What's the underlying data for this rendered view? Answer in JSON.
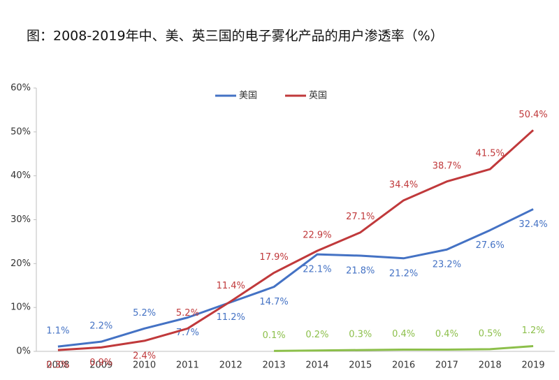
{
  "chart_data": {
    "type": "line",
    "title": "图：2008-2019年中、美、英三国的电子雾化产品的用户渗透率（%）",
    "categories": [
      "2008",
      "2009",
      "2010",
      "2011",
      "2012",
      "2013",
      "2014",
      "2015",
      "2016",
      "2017",
      "2018",
      "2019"
    ],
    "series": [
      {
        "name": "美国",
        "color": "#4472c4",
        "values": [
          1.1,
          2.2,
          5.2,
          7.7,
          11.2,
          14.7,
          22.1,
          21.8,
          21.2,
          23.2,
          27.6,
          32.4
        ],
        "value_labels": [
          "1.1%",
          "2.2%",
          "5.2%",
          "7.7%",
          "11.2%",
          "14.7%",
          "22.1%",
          "21.8%",
          "21.2%",
          "23.2%",
          "27.6%",
          "32.4%"
        ]
      },
      {
        "name": "英国",
        "color": "#c0393b",
        "values": [
          0.3,
          0.9,
          2.4,
          5.2,
          11.4,
          17.9,
          22.9,
          27.1,
          34.4,
          38.7,
          41.5,
          50.4
        ],
        "value_labels": [
          "0.3%",
          "0.9%",
          "2.4%",
          "5.2%",
          "11.4%",
          "17.9%",
          "22.9%",
          "27.1%",
          "34.4%",
          "38.7%",
          "41.5%",
          "50.4%"
        ]
      },
      {
        "color": "#8cbf4a",
        "values": [
          null,
          null,
          null,
          null,
          null,
          0.1,
          0.2,
          0.3,
          0.4,
          0.4,
          0.5,
          1.2
        ],
        "value_labels": [
          null,
          null,
          null,
          null,
          null,
          "0.1%",
          "0.2%",
          "0.3%",
          "0.4%",
          "0.4%",
          "0.5%",
          "1.2%"
        ]
      }
    ],
    "ylim": [
      0,
      60
    ],
    "yticks": [
      {
        "value": 0,
        "label": "0%"
      },
      {
        "value": 10,
        "label": "10%"
      },
      {
        "value": 20,
        "label": "20%"
      },
      {
        "value": 30,
        "label": "30%"
      },
      {
        "value": 40,
        "label": "40%"
      },
      {
        "value": 50,
        "label": "50%"
      },
      {
        "value": 60,
        "label": "60%"
      }
    ],
    "grid": false,
    "legend": "top"
  }
}
